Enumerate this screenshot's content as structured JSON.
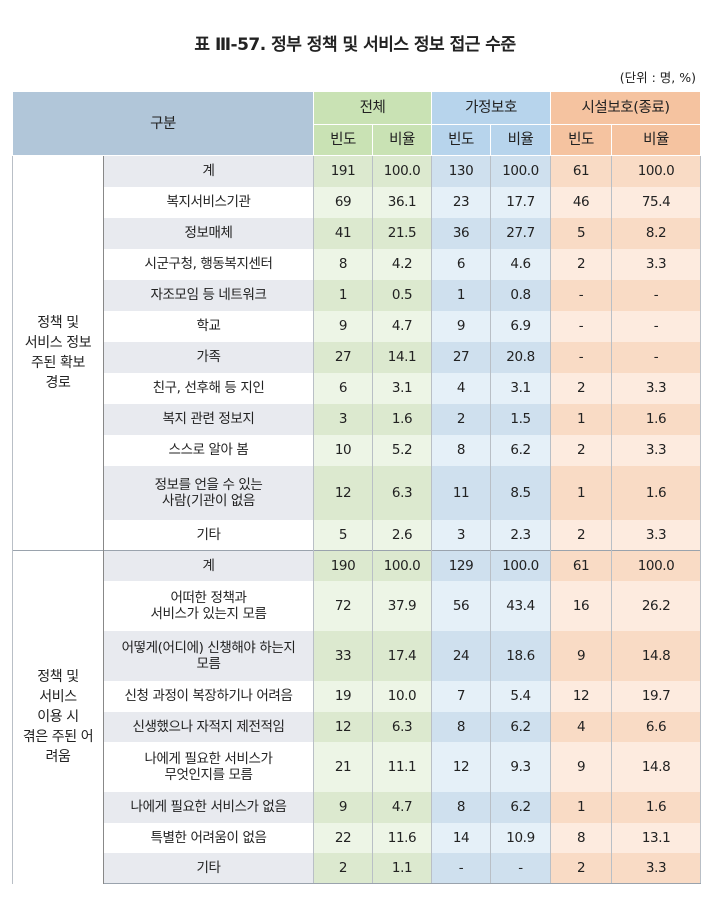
{
  "title": "표 Ⅲ-57. 정부 정책 및 서비스 정보 접근 수준",
  "unit": "(단위 : 명, %)",
  "header": {
    "category": "구분",
    "groups": [
      "전체",
      "가정보호",
      "시설보호(종료)"
    ],
    "sub": [
      "빈도",
      "비율"
    ]
  },
  "sections": [
    {
      "label": "정책 및\n서비스 정보\n주된 확보\n경로",
      "rows": [
        {
          "label": "계",
          "v": [
            "191",
            "100.0",
            "130",
            "100.0",
            "61",
            "100.0"
          ]
        },
        {
          "label": "복지서비스기관",
          "v": [
            "69",
            "36.1",
            "23",
            "17.7",
            "46",
            "75.4"
          ]
        },
        {
          "label": "정보매체",
          "v": [
            "41",
            "21.5",
            "36",
            "27.7",
            "5",
            "8.2"
          ]
        },
        {
          "label": "시군구청, 행동복지센터",
          "v": [
            "8",
            "4.2",
            "6",
            "4.6",
            "2",
            "3.3"
          ]
        },
        {
          "label": "자조모임 등 네트워크",
          "v": [
            "1",
            "0.5",
            "1",
            "0.8",
            "-",
            "-"
          ]
        },
        {
          "label": "학교",
          "v": [
            "9",
            "4.7",
            "9",
            "6.9",
            "-",
            "-"
          ]
        },
        {
          "label": "가족",
          "v": [
            "27",
            "14.1",
            "27",
            "20.8",
            "-",
            "-"
          ]
        },
        {
          "label": "친구, 선후해 등 지인",
          "v": [
            "6",
            "3.1",
            "4",
            "3.1",
            "2",
            "3.3"
          ]
        },
        {
          "label": "복지 관련 정보지",
          "v": [
            "3",
            "1.6",
            "2",
            "1.5",
            "1",
            "1.6"
          ]
        },
        {
          "label": "스스로 알아 봄",
          "v": [
            "10",
            "5.2",
            "8",
            "6.2",
            "2",
            "3.3"
          ]
        },
        {
          "label": "정보를 언을 수 있는\n사람(기관이 없음",
          "v": [
            "12",
            "6.3",
            "11",
            "8.5",
            "1",
            "1.6"
          ]
        },
        {
          "label": "기타",
          "v": [
            "5",
            "2.6",
            "3",
            "2.3",
            "2",
            "3.3"
          ]
        }
      ]
    },
    {
      "label": "정책 및\n서비스\n이용 시\n겪은 주된 어\n려움",
      "rows": [
        {
          "label": "계",
          "v": [
            "190",
            "100.0",
            "129",
            "100.0",
            "61",
            "100.0"
          ]
        },
        {
          "label": "어떠한 정책과\n서비스가 있는지 모름",
          "v": [
            "72",
            "37.9",
            "56",
            "43.4",
            "16",
            "26.2"
          ]
        },
        {
          "label": "어떻게(어디에) 신챙해야 하는지\n모름",
          "v": [
            "33",
            "17.4",
            "24",
            "18.6",
            "9",
            "14.8"
          ]
        },
        {
          "label": "신청 과정이 복장하기나 어려음",
          "v": [
            "19",
            "10.0",
            "7",
            "5.4",
            "12",
            "19.7"
          ]
        },
        {
          "label": "신생했으나 자적지 제전적임",
          "v": [
            "12",
            "6.3",
            "8",
            "6.2",
            "4",
            "6.6"
          ]
        },
        {
          "label": "나에게 필요한 서비스가\n무엇인지를 모름",
          "v": [
            "21",
            "11.1",
            "12",
            "9.3",
            "9",
            "14.8"
          ]
        },
        {
          "label": "나에게 필요한 서비스가 없음",
          "v": [
            "9",
            "4.7",
            "8",
            "6.2",
            "1",
            "1.6"
          ]
        },
        {
          "label": "특별한 어려움이 없음",
          "v": [
            "22",
            "11.6",
            "14",
            "10.9",
            "8",
            "13.1"
          ]
        },
        {
          "label": "기타",
          "v": [
            "2",
            "1.1",
            "-",
            "-",
            "2",
            "3.3"
          ]
        }
      ]
    }
  ],
  "colors": {
    "header_category": "#b1c6d9",
    "total": "#c9e2b4",
    "home": "#b7d4ec",
    "facility": "#f5c3a0"
  }
}
